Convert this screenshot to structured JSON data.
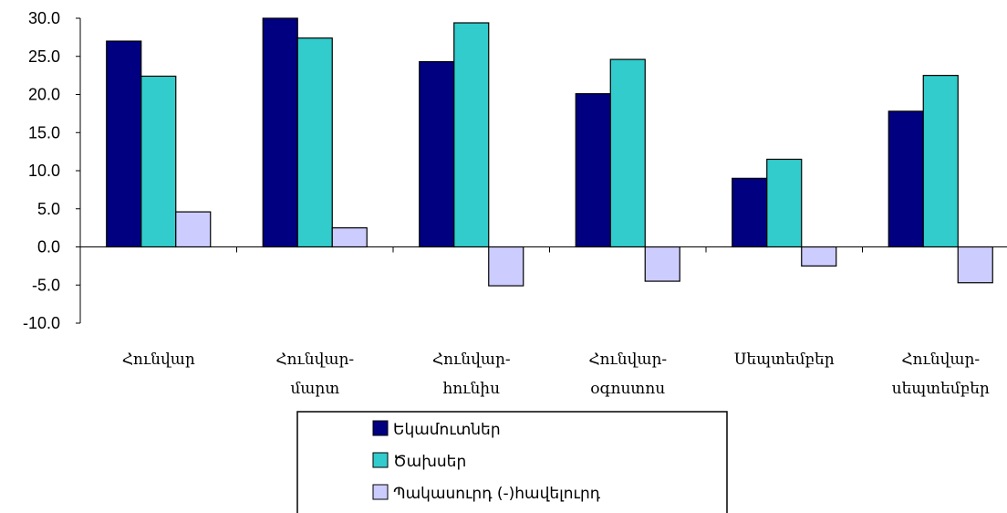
{
  "chart_data": {
    "type": "bar",
    "categories": [
      [
        "Հունվար"
      ],
      [
        "Հունվար-",
        "մարտ"
      ],
      [
        "Հունվար-",
        "հունիս"
      ],
      [
        "Հունվար-",
        "օգոստոս"
      ],
      [
        "Սեպտեմբեր"
      ],
      [
        "Հունվար-",
        "սեպտեմբեր"
      ]
    ],
    "series": [
      {
        "name": "Եկամուտներ",
        "color": "#000080",
        "values": [
          27.0,
          30.0,
          24.3,
          20.1,
          9.0,
          17.8
        ]
      },
      {
        "name": "Ծախսեր",
        "color": "#33CCCC",
        "values": [
          22.4,
          27.4,
          29.4,
          24.6,
          11.5,
          22.5
        ]
      },
      {
        "name": "Պակասուրդ (-)հավելուրդ",
        "color": "#CCCCFF",
        "values": [
          4.6,
          2.5,
          -5.1,
          -4.5,
          -2.5,
          -4.7
        ]
      }
    ],
    "ylim": [
      -10,
      30
    ],
    "yticks": [
      "30.0",
      "25.0",
      "20.0",
      "15.0",
      "10.0",
      "5.0",
      "0.0",
      "-5.0",
      "-10.0"
    ],
    "legend_position": "bottom",
    "grid": false
  }
}
